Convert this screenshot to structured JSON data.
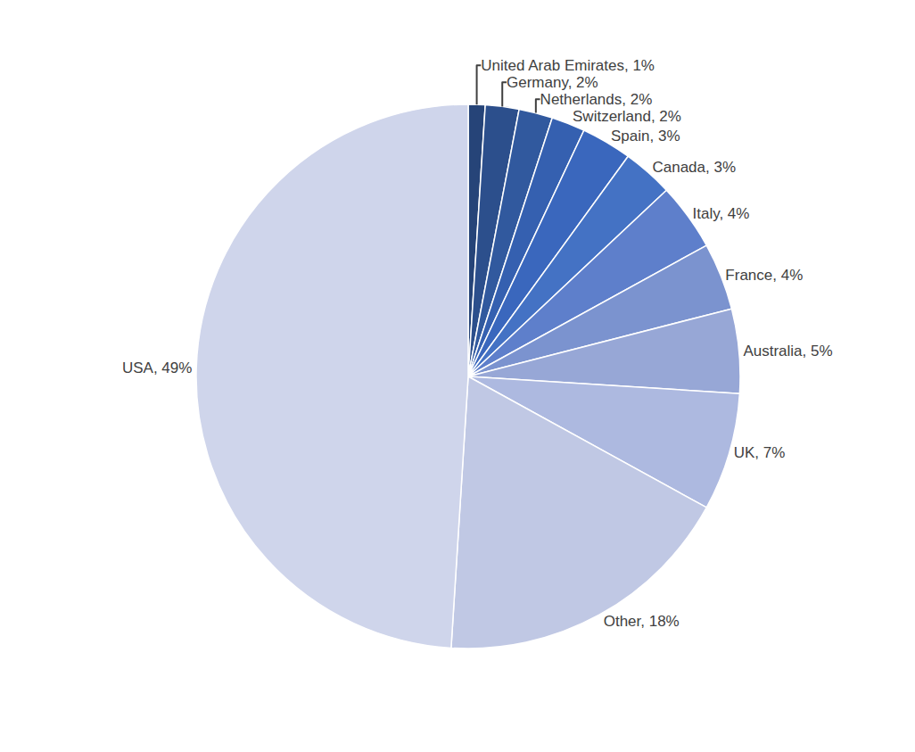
{
  "chart_data": {
    "type": "pie",
    "categories": [
      "United Arab Emirates",
      "Germany",
      "Netherlands",
      "Switzerland",
      "Spain",
      "Canada",
      "Italy",
      "France",
      "Australia",
      "UK",
      "Other",
      "USA"
    ],
    "values": [
      1,
      2,
      2,
      2,
      3,
      3,
      4,
      4,
      5,
      7,
      18,
      49
    ],
    "value_labels": [
      "United Arab Emirates, 1%",
      "Germany, 2%",
      "Netherlands, 2%",
      "Switzerland, 2%",
      "Spain, 3%",
      "Canada, 3%",
      "Italy, 4%",
      "France, 4%",
      "Australia, 5%",
      "UK, 7%",
      "Other, 18%",
      "USA, 49%"
    ],
    "colors": [
      "#264478",
      "#2c4f8c",
      "#31599e",
      "#3560b0",
      "#3a67bd",
      "#4472c4",
      "#5e7fcb",
      "#7b93cf",
      "#97a7d6",
      "#adb9e0",
      "#c0c8e4",
      "#cfd5eb"
    ],
    "data_labels": true,
    "legend": false
  }
}
